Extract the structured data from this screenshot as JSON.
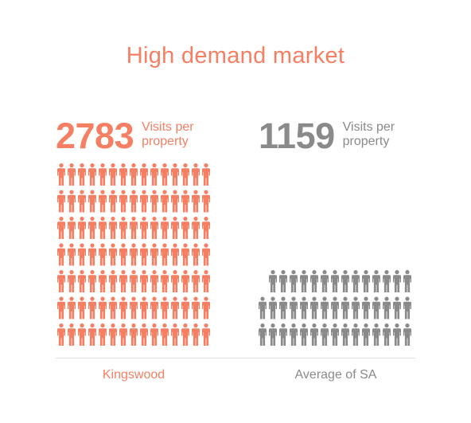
{
  "title": "High demand market",
  "colors": {
    "primary": "#f47f63",
    "secondary": "#8a8a8a",
    "divider": "#e6e6e6"
  },
  "chart_data": {
    "type": "bar",
    "title": "High demand market",
    "categories": [
      "Kingswood",
      "Average of SA"
    ],
    "values": [
      2783,
      1159
    ],
    "value_labels": [
      "2783",
      "1159"
    ],
    "value_caption": "Visits per property",
    "series": [
      {
        "name": "Kingswood",
        "value": 2783,
        "color": "#f47f63",
        "icon": "person-icon"
      },
      {
        "name": "Average of SA",
        "value": 1159,
        "color": "#8a8a8a",
        "icon": "person-icon"
      }
    ]
  },
  "stats": [
    {
      "value": "2783",
      "label": "Visits per property"
    },
    {
      "value": "1159",
      "label": "Visits per property"
    }
  ],
  "categories": [
    "Kingswood",
    "Average of SA"
  ]
}
